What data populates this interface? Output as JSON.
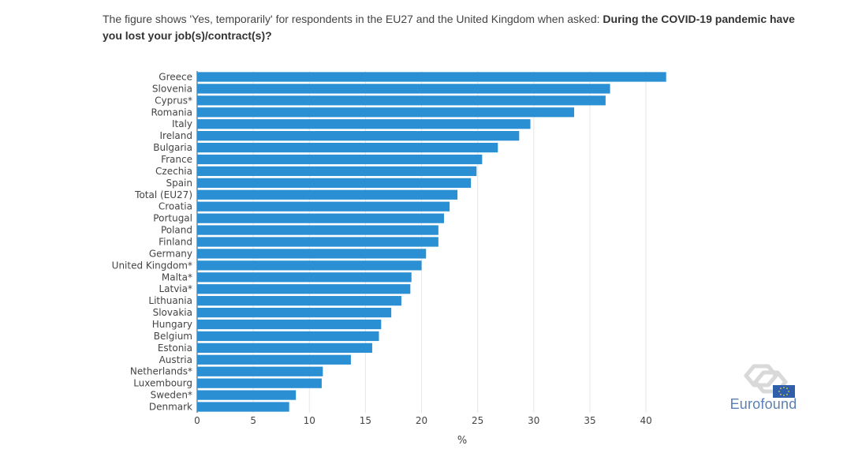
{
  "caption": {
    "prefix": "The figure shows 'Yes, temporarily' for respondents in the EU27 and the United Kingdom when asked: ",
    "question": "During the COVID-19 pandemic have you lost your job(s)/contract(s)?"
  },
  "brand": {
    "name": "Eurofound",
    "color": "#5a80b6"
  },
  "chart_data": {
    "type": "bar",
    "orientation": "horizontal",
    "bar_color": "#2b8fd4",
    "categories": [
      "Greece",
      "Slovenia",
      "Cyprus*",
      "Romania",
      "Italy",
      "Ireland",
      "Bulgaria",
      "France",
      "Czechia",
      "Spain",
      "Total (EU27)",
      "Croatia",
      "Portugal",
      "Poland",
      "Finland",
      "Germany",
      "United Kingdom*",
      "Malta*",
      "Latvia*",
      "Lithuania",
      "Slovakia",
      "Hungary",
      "Belgium",
      "Estonia",
      "Austria",
      "Netherlands*",
      "Luxembourg",
      "Sweden*",
      "Denmark"
    ],
    "values": [
      41.8,
      36.8,
      36.4,
      33.6,
      29.7,
      28.7,
      26.8,
      25.4,
      24.9,
      24.4,
      23.2,
      22.5,
      22.0,
      21.5,
      21.5,
      20.4,
      20.0,
      19.1,
      19.0,
      18.2,
      17.3,
      16.4,
      16.2,
      15.6,
      13.7,
      11.2,
      11.1,
      8.8,
      8.2
    ],
    "xlabel": "%",
    "xlim": [
      0,
      44
    ],
    "xticks": [
      0,
      5,
      10,
      15,
      20,
      25,
      30,
      35,
      40
    ],
    "grid": true
  }
}
